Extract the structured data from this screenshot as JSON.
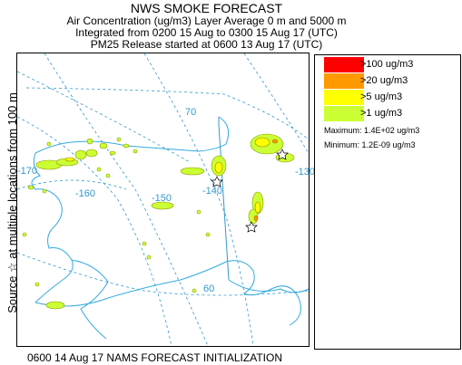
{
  "header": {
    "title": "NWS SMOKE FORECAST",
    "line2": "Air Concentration (ug/m3) Layer Average    0 m and  5000 m",
    "line3": "Integrated from 0200 15 Aug to 0300 15 Aug 17 (UTC)",
    "line4": "PM25 Release started at 0600 13 Aug 17 (UTC)"
  },
  "side_label": "Source ☆ at multiple locations  from  100 m",
  "footer": "0600 14 Aug 17 NAMS FORECAST INITIALIZATION",
  "legend": {
    "items": [
      {
        "label": ">100 ug/m3",
        "color": "#ff0000"
      },
      {
        "label": ">20 ug/m3",
        "color": "#ff9900"
      },
      {
        "label": ">5 ug/m3",
        "color": "#ffff00"
      },
      {
        "label": ">1 ug/m3",
        "color": "#ccff33"
      }
    ],
    "maximum": "Maximum: 1.4E+02 ug/m3",
    "minimum": "Minimum: 1.2E-09 ug/m3"
  },
  "map": {
    "grid_color": "#3399cc",
    "coast_color": "#33aadd",
    "grid_labels": [
      "70",
      "-130",
      "-140",
      "-150",
      "-160",
      "-170",
      "60"
    ]
  }
}
